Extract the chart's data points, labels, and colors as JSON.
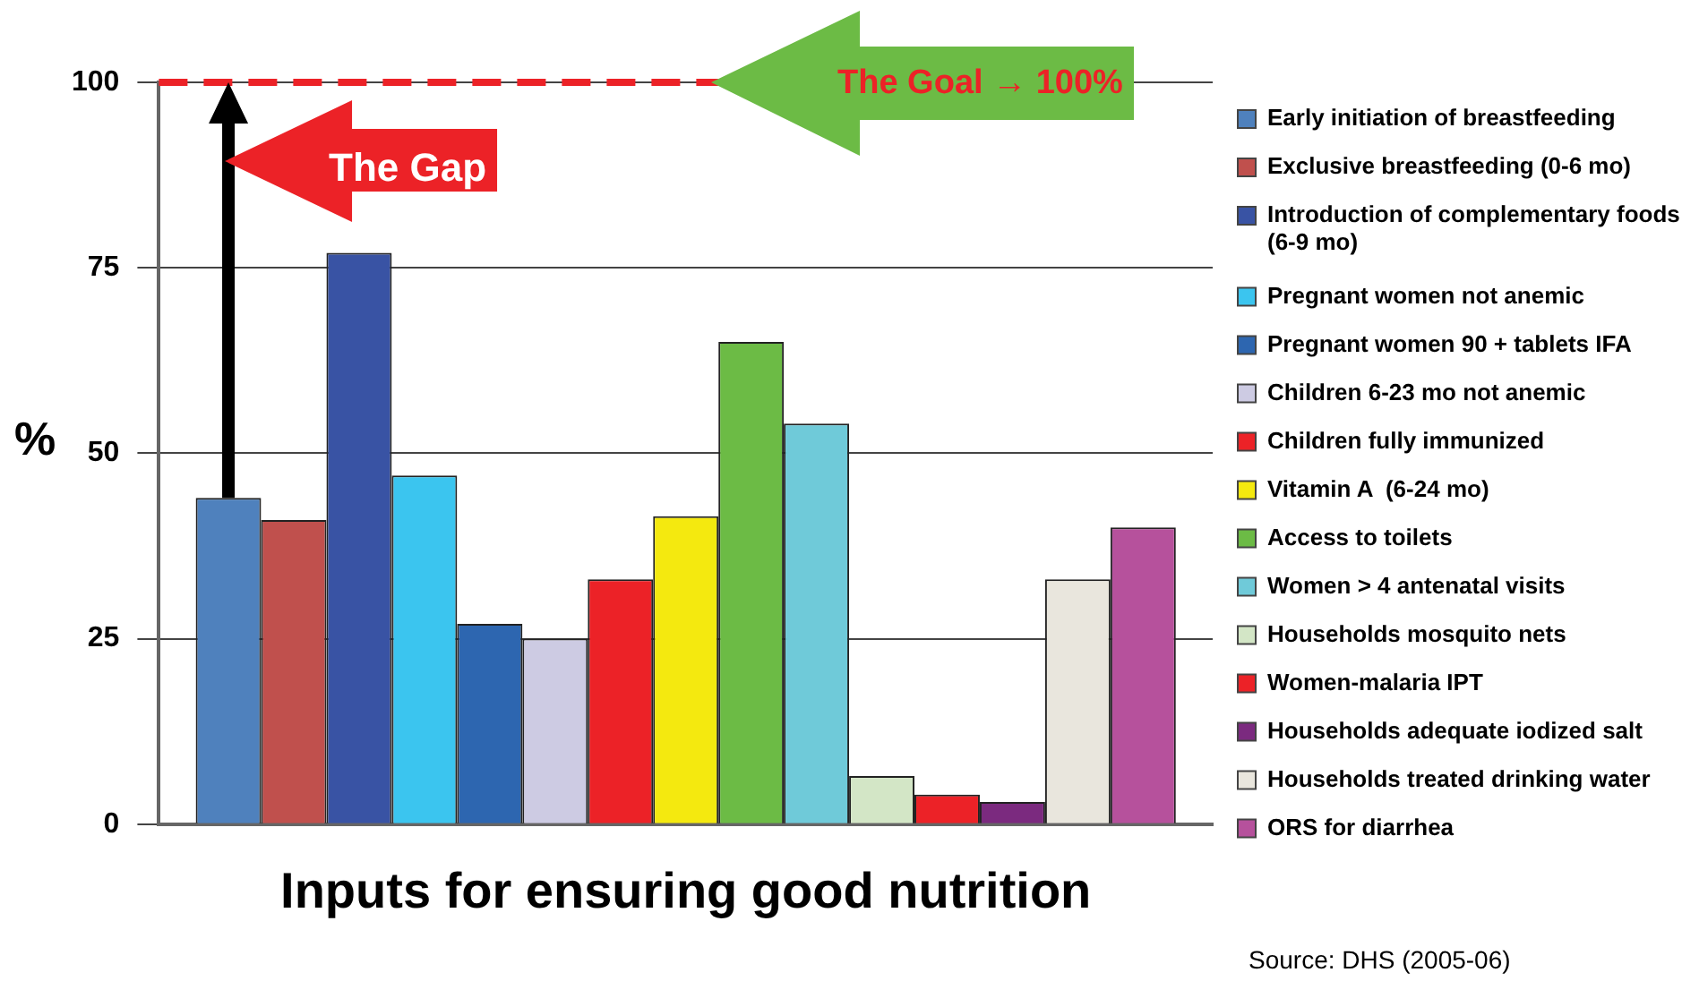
{
  "chart_data": {
    "type": "bar",
    "xlabel": "Inputs for ensuring good nutrition",
    "ylabel": "%",
    "categories": [
      null
    ],
    "series": [
      {
        "name": "Early initiation of breastfeeding",
        "color": "#4f81bd",
        "values": [
          44
        ]
      },
      {
        "name": "Exclusive breastfeeding (0-6 mo)",
        "color": "#c0504d",
        "values": [
          41
        ]
      },
      {
        "name": "Introduction of complementary foods (6-9 mo)",
        "color": "#3953a4",
        "values": [
          77
        ]
      },
      {
        "name": "Pregnant women not anemic",
        "color": "#3bc5ef",
        "values": [
          47
        ]
      },
      {
        "name": "Pregnant women 90 + tablets IFA",
        "color": "#2d66b0",
        "values": [
          27
        ]
      },
      {
        "name": "Children 6-23 mo not anemic",
        "color": "#cdcbe3",
        "values": [
          25
        ]
      },
      {
        "name": "Children fully immunized",
        "color": "#ec2227",
        "values": [
          33
        ]
      },
      {
        "name": "Vitamin A  (6-24 mo)",
        "color": "#f4e90f",
        "values": [
          41.5
        ]
      },
      {
        "name": "Access to toilets",
        "color": "#6cbb45",
        "values": [
          65
        ]
      },
      {
        "name": "Women > 4 antenatal visits",
        "color": "#6fcad9",
        "values": [
          54
        ]
      },
      {
        "name": "Households mosquito nets",
        "color": "#d3e6c6",
        "values": [
          6.5
        ]
      },
      {
        "name": "Women-malaria IPT",
        "color": "#ec2227",
        "values": [
          4
        ]
      },
      {
        "name": "Households adequate iodized salt",
        "color": "#7b2a7f",
        "values": [
          3
        ]
      },
      {
        "name": "Households treated drinking water",
        "color": "#e9e6dd",
        "values": [
          33
        ]
      },
      {
        "name": "ORS for diarrhea",
        "color": "#b6519c",
        "values": [
          40
        ]
      }
    ],
    "ylim": [
      0,
      100
    ],
    "yticks": [
      0,
      25,
      50,
      75,
      100
    ],
    "grid": "y",
    "legend": "right",
    "tick_labels": "y",
    "ref_lines": [
      {
        "axis": "y",
        "value": 100,
        "color": "#ec2227",
        "line_style": "dashed"
      }
    ],
    "annotations": [
      "The Gap",
      "The Goal → 100%",
      "Source: DHS (2005-06)"
    ]
  }
}
